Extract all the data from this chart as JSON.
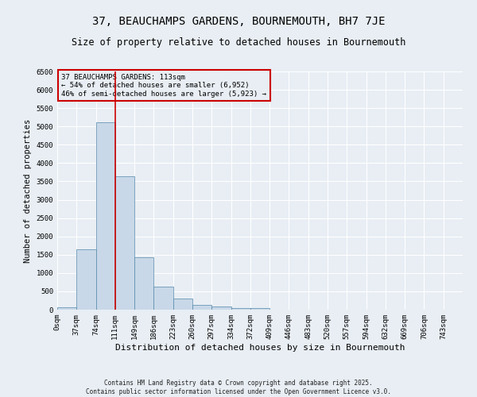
{
  "title": "37, BEAUCHAMPS GARDENS, BOURNEMOUTH, BH7 7JE",
  "subtitle": "Size of property relative to detached houses in Bournemouth",
  "xlabel": "Distribution of detached houses by size in Bournemouth",
  "ylabel": "Number of detached properties",
  "footer": "Contains HM Land Registry data © Crown copyright and database right 2025.\nContains public sector information licensed under the Open Government Licence v3.0.",
  "bin_labels": [
    "0sqm",
    "37sqm",
    "74sqm",
    "111sqm",
    "149sqm",
    "186sqm",
    "223sqm",
    "260sqm",
    "297sqm",
    "334sqm",
    "372sqm",
    "409sqm",
    "446sqm",
    "483sqm",
    "520sqm",
    "557sqm",
    "594sqm",
    "632sqm",
    "669sqm",
    "706sqm",
    "743sqm"
  ],
  "bar_values": [
    70,
    1650,
    5120,
    3630,
    1420,
    620,
    310,
    140,
    80,
    50,
    50,
    0,
    0,
    0,
    0,
    0,
    0,
    0,
    0,
    0,
    0
  ],
  "bar_color": "#c8d8e8",
  "bar_edge_color": "#5588aa",
  "property_bin_index": 3,
  "vline_color": "#cc0000",
  "annotation_text": "37 BEAUCHAMPS GARDENS: 113sqm\n← 54% of detached houses are smaller (6,952)\n46% of semi-detached houses are larger (5,923) →",
  "annotation_box_color": "#cc0000",
  "ylim": [
    0,
    6500
  ],
  "yticks": [
    0,
    500,
    1000,
    1500,
    2000,
    2500,
    3000,
    3500,
    4000,
    4500,
    5000,
    5500,
    6000,
    6500
  ],
  "background_color": "#e8eef4",
  "grid_color": "#ffffff",
  "title_fontsize": 10,
  "subtitle_fontsize": 8.5,
  "xlabel_fontsize": 8,
  "ylabel_fontsize": 7.5,
  "tick_fontsize": 6.5,
  "annotation_fontsize": 6.5,
  "footer_fontsize": 5.5
}
